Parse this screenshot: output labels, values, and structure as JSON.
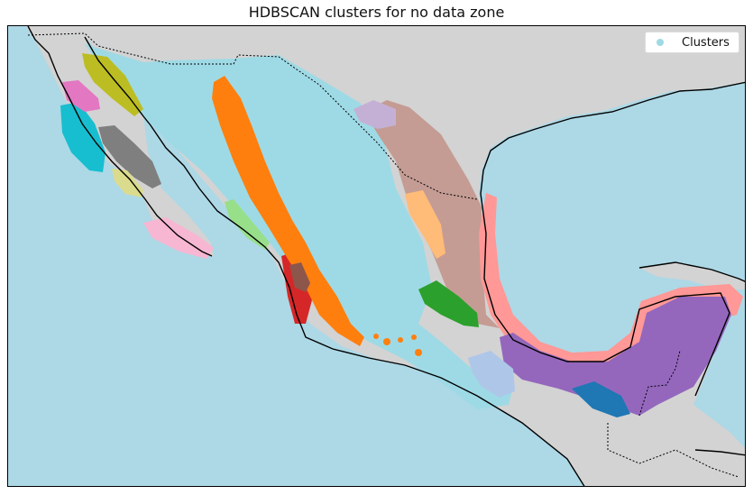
{
  "title": "HDBSCAN clusters for no data zone",
  "legend": {
    "label": "Clusters",
    "marker_color": "#9edae5"
  },
  "colors": {
    "ocean": "#add8e6",
    "land": "#d3d3d3",
    "coastline": "#000000"
  },
  "clusters": [
    {
      "color": "#9edae5"
    },
    {
      "color": "#ff7f0e"
    },
    {
      "color": "#c49c94"
    },
    {
      "color": "#ff9896"
    },
    {
      "color": "#9467bd"
    },
    {
      "color": "#2ca02c"
    },
    {
      "color": "#d62728"
    },
    {
      "color": "#1f77b4"
    },
    {
      "color": "#17becf"
    },
    {
      "color": "#7f7f7f"
    },
    {
      "color": "#bcbd22"
    },
    {
      "color": "#e377c2"
    },
    {
      "color": "#f7b6d2"
    },
    {
      "color": "#dbdb8d"
    },
    {
      "color": "#98df8a"
    },
    {
      "color": "#ffbb78"
    },
    {
      "color": "#c5b0d5"
    },
    {
      "color": "#aec7e8"
    },
    {
      "color": "#8c564b"
    }
  ]
}
